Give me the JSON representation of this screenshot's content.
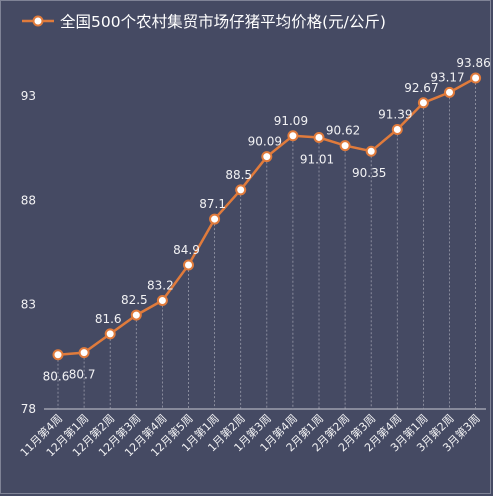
{
  "chart_data": {
    "type": "line",
    "title": "全国500个农村集贸市场仔猪平均价格(元/公斤)",
    "categories": [
      "11月第4周",
      "12月第1周",
      "12月第2周",
      "12月第3周",
      "12月第4周",
      "12月第5周",
      "1月第1周",
      "1月第2周",
      "1月第3周",
      "1月第4周",
      "2月第1周",
      "2月第2周",
      "2月第3周",
      "2月第4周",
      "3月第1周",
      "3月第2周",
      "3月第3周"
    ],
    "series": [
      {
        "name": "全国500个农村集贸市场仔猪平均价格(元/公斤)",
        "values": [
          80.6,
          80.7,
          81.6,
          82.5,
          83.2,
          84.9,
          87.1,
          88.5,
          90.09,
          91.09,
          91.01,
          90.62,
          90.35,
          91.39,
          92.67,
          93.17,
          93.86
        ]
      }
    ],
    "value_labels": [
      "80.6",
      "80.7",
      "81.6",
      "82.5",
      "83.2",
      "84.9",
      "87.1",
      "88.5",
      "90.09",
      "91.09",
      "91.01",
      "90.62",
      "90.35",
      "91.39",
      "92.67",
      "93.17",
      "93.86"
    ],
    "yticks": [
      "78",
      "83",
      "88",
      "93"
    ],
    "ylim": [
      78,
      95.2
    ],
    "grid": false,
    "legend_position": "top",
    "colors": {
      "background": "#454a63",
      "line": "#e07b3c",
      "marker_fill": "#ffffff",
      "text": "#f2f2f4",
      "dropline": "#9a9cab"
    }
  }
}
